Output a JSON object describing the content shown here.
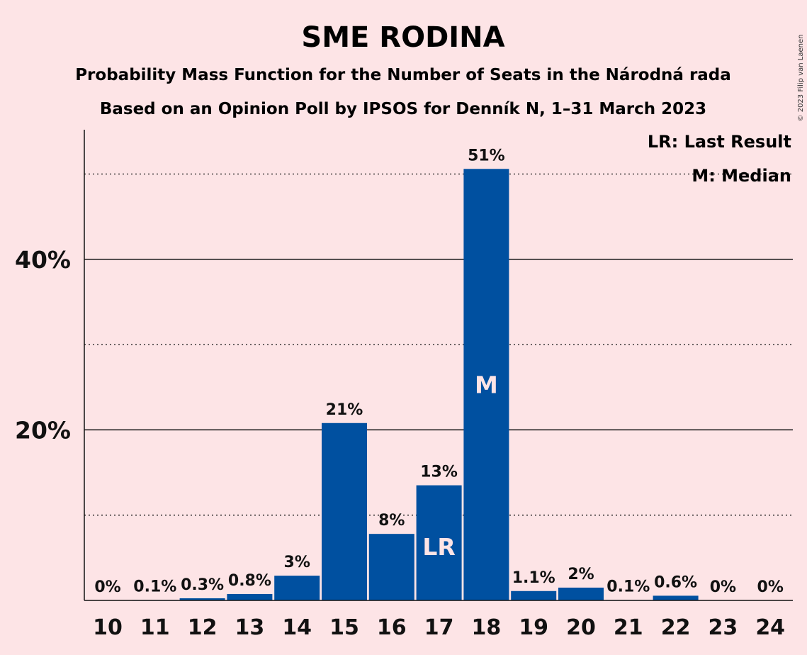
{
  "title": "SME RODINA",
  "subtitle_1": "Probability Mass Function for the Number of Seats in the Národná rada",
  "subtitle_2": "Based on an Opinion Poll by IPSOS for Denník N, 1–31 March 2023",
  "legend": {
    "last_result": "LR: Last Result",
    "median": "M: Median"
  },
  "copyright": "© 2023 Filip van Laenen",
  "colors": {
    "background": "#FDE4E6",
    "bar": "#0050A0",
    "text": "#111111"
  },
  "chart_data": {
    "type": "bar",
    "xlabel": "",
    "ylabel": "",
    "ylim": [
      0,
      55
    ],
    "y_ticks": [
      {
        "value": 20,
        "label": "20%"
      },
      {
        "value": 40,
        "label": "40%"
      }
    ],
    "gridlines_solid": [
      20,
      40
    ],
    "gridlines_dotted": [
      10,
      30,
      50
    ],
    "categories": [
      "10",
      "11",
      "12",
      "13",
      "14",
      "15",
      "16",
      "17",
      "18",
      "19",
      "20",
      "21",
      "22",
      "23",
      "24"
    ],
    "values": [
      0,
      0.1,
      0.3,
      0.8,
      3,
      21,
      8,
      13,
      51,
      1.1,
      2,
      0.1,
      0.6,
      0,
      0
    ],
    "bar_heights": [
      0,
      0.05,
      0.25,
      0.75,
      2.9,
      20.8,
      7.8,
      13.5,
      50.6,
      1.1,
      1.5,
      0.05,
      0.55,
      0,
      0
    ],
    "labels": [
      "0%",
      "0.1%",
      "0.3%",
      "0.8%",
      "3%",
      "21%",
      "8%",
      "13%",
      "51%",
      "1.1%",
      "2%",
      "0.1%",
      "0.6%",
      "0%",
      "0%"
    ],
    "markers": [
      {
        "category": "17",
        "text": "LR"
      },
      {
        "category": "18",
        "text": "M"
      }
    ],
    "legend_position": "top-right",
    "grid": true
  }
}
